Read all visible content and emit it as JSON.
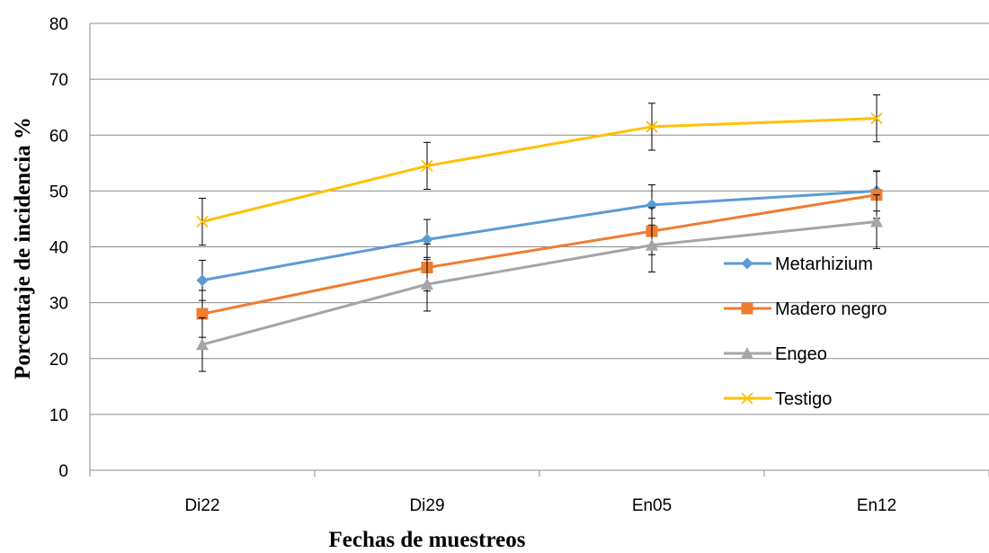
{
  "chart_data": {
    "type": "line",
    "title": "",
    "xlabel": "Fechas de muestreos",
    "ylabel": "Porcentaje de incidencia %",
    "categories": [
      "Di22",
      "Di29",
      "En05",
      "En12"
    ],
    "ylim": [
      0,
      80
    ],
    "yticks": [
      0,
      10,
      20,
      30,
      40,
      50,
      60,
      70,
      80
    ],
    "grid": "horizontal",
    "legend_position": "right",
    "error_bars": true,
    "series": [
      {
        "name": "Metarhizium",
        "color": "#5B9BD5",
        "marker": "diamond",
        "values": [
          34,
          41.3,
          47.5,
          50
        ],
        "error": [
          3.6,
          3.6,
          3.6,
          3.6
        ]
      },
      {
        "name": "Madero negro",
        "color": "#ED7D31",
        "marker": "square",
        "values": [
          28,
          36.3,
          42.8,
          49.3
        ],
        "error": [
          4.2,
          4.2,
          4.2,
          4.2
        ]
      },
      {
        "name": "Engeo",
        "color": "#A5A5A5",
        "marker": "triangle",
        "values": [
          22.5,
          33.3,
          40.3,
          44.5
        ],
        "error": [
          4.8,
          4.8,
          4.8,
          4.8
        ]
      },
      {
        "name": "Testigo",
        "color": "#FFC000",
        "marker": "x",
        "values": [
          44.5,
          54.5,
          61.5,
          63
        ],
        "error": [
          4.2,
          4.2,
          4.2,
          4.2
        ]
      }
    ]
  }
}
